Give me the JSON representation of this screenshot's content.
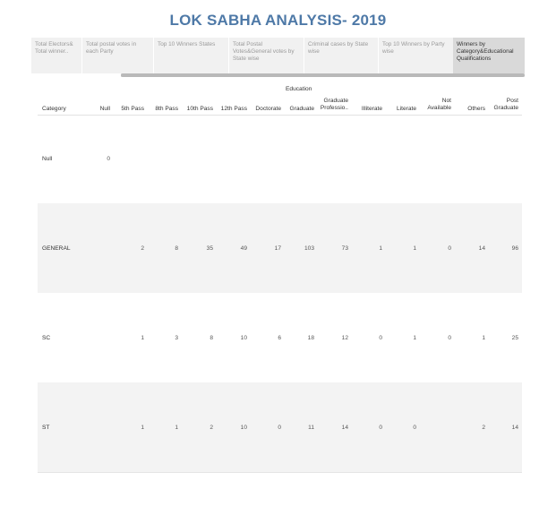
{
  "title": "LOK SABHA ANALYSIS- 2019",
  "tabs": [
    {
      "label": "Total Electors& Total winner..",
      "active": false
    },
    {
      "label": "Total postal votes in each Party",
      "active": false
    },
    {
      "label": "Top 10 Winners States",
      "active": false
    },
    {
      "label": "Total Postal Votes&General votes by State wise",
      "active": false
    },
    {
      "label": "Criminal cases by State wise",
      "active": false
    },
    {
      "label": "Top 10 Winners by Party wise",
      "active": false
    },
    {
      "label": "Winners by Category&Educational Qualifications",
      "active": true
    }
  ],
  "table": {
    "group_header": "Education",
    "row_header": "Category",
    "columns": [
      "Null",
      "5th Pass",
      "8th Pass",
      "10th Pass",
      "12th Pass",
      "Doctorate",
      "Graduate",
      "Graduate Professio..",
      "Illiterate",
      "Literate",
      "Not Available",
      "Others",
      "Post Graduate"
    ],
    "rows": [
      {
        "category": "Null",
        "values": [
          "0",
          "",
          "",
          "",
          "",
          "",
          "",
          "",
          "",
          "",
          "",
          "",
          ""
        ]
      },
      {
        "category": "GENERAL",
        "values": [
          "",
          "2",
          "8",
          "35",
          "49",
          "17",
          "103",
          "73",
          "1",
          "1",
          "0",
          "14",
          "96"
        ]
      },
      {
        "category": "SC",
        "values": [
          "",
          "1",
          "3",
          "8",
          "10",
          "6",
          "18",
          "12",
          "0",
          "1",
          "0",
          "1",
          "25"
        ]
      },
      {
        "category": "ST",
        "values": [
          "",
          "1",
          "1",
          "2",
          "10",
          "0",
          "11",
          "14",
          "0",
          "0",
          "",
          "2",
          "14"
        ]
      }
    ]
  },
  "colors": {
    "title": "#4e79a7",
    "active_tab": "#d9d9d9",
    "band": "#f3f3f3"
  }
}
